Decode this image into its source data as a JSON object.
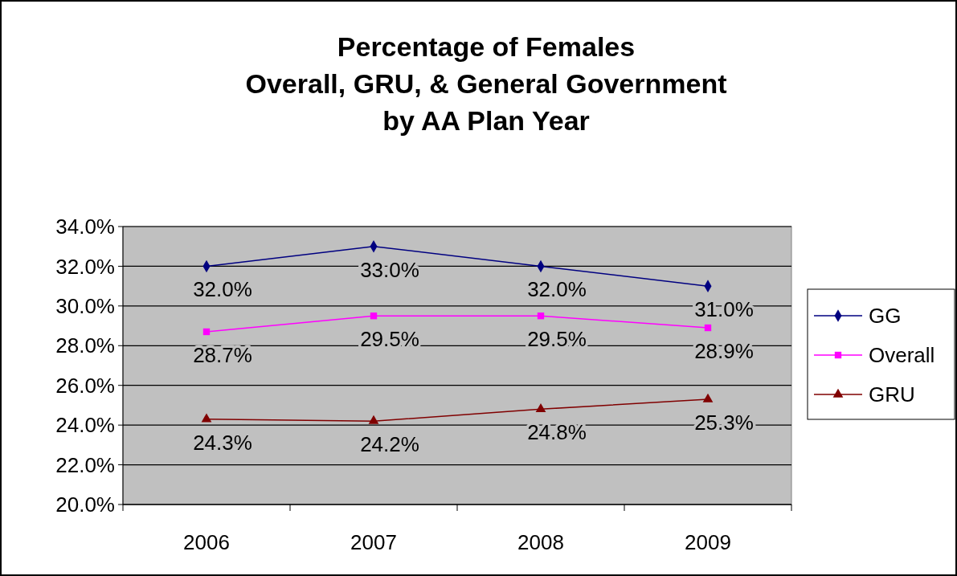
{
  "chart_data": {
    "type": "line",
    "title": "Percentage of Females\nOverall, GRU, & General Government\nby AA Plan Year",
    "categories": [
      "2006",
      "2007",
      "2008",
      "2009"
    ],
    "series": [
      {
        "name": "GG",
        "color": "#000080",
        "marker": "diamond",
        "values": [
          32.0,
          33.0,
          32.0,
          31.0
        ],
        "value_labels": [
          "32.0%",
          "33.0%",
          "32.0%",
          "31.0%"
        ]
      },
      {
        "name": "Overall",
        "color": "#ff00ff",
        "marker": "square",
        "values": [
          28.7,
          29.5,
          29.5,
          28.9
        ],
        "value_labels": [
          "28.7%",
          "29.5%",
          "29.5%",
          "28.9%"
        ]
      },
      {
        "name": "GRU",
        "color": "#800000",
        "marker": "triangle",
        "values": [
          24.3,
          24.2,
          24.8,
          25.3
        ],
        "value_labels": [
          "24.3%",
          "24.2%",
          "24.8%",
          "25.3%"
        ]
      }
    ],
    "ylim": [
      20,
      34
    ],
    "yticks": [
      {
        "value": 20,
        "label": "20.0%"
      },
      {
        "value": 22,
        "label": "22.0%"
      },
      {
        "value": 24,
        "label": "24.0%"
      },
      {
        "value": 26,
        "label": "26.0%"
      },
      {
        "value": 28,
        "label": "28.0%"
      },
      {
        "value": 30,
        "label": "30.0%"
      },
      {
        "value": 32,
        "label": "32.0%"
      },
      {
        "value": 34,
        "label": "34.0%"
      }
    ],
    "grid": "y",
    "legend": "right"
  }
}
